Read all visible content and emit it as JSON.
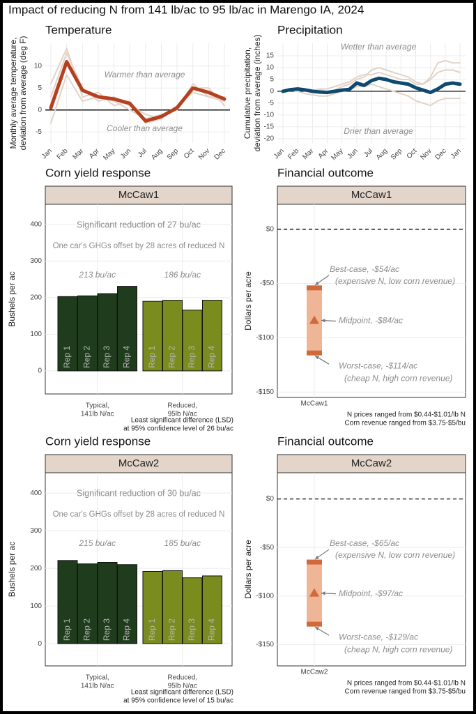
{
  "title": "Impact of reducing N from 141 lb/ac to 95 lb/ac in Marengo IA, 2024",
  "chart_data": [
    {
      "type": "line",
      "title": "Temperature",
      "ylabel": [
        "Monthly average temperature,",
        "deviation from average (deg F)"
      ],
      "categories": [
        "Jan",
        "Feb",
        "Mar",
        "Apr",
        "May",
        "Jun",
        "Jul",
        "Aug",
        "Sep",
        "Oct",
        "Nov",
        "Dec"
      ],
      "ylim": [
        -7.5,
        15.2
      ],
      "yticks": [
        -5,
        0,
        5,
        10
      ],
      "grid": true,
      "hline": 0,
      "annotations": [
        "Warmer than average",
        "Cooler than average"
      ],
      "series": [
        {
          "color": "#e2d3c7",
          "values": [
            3,
            13,
            5,
            2,
            3,
            1,
            -1,
            -2,
            1,
            4,
            3,
            2
          ]
        },
        {
          "color": "#e2d3c7",
          "values": [
            -3,
            8,
            2,
            3,
            2,
            0,
            -2,
            -1,
            0,
            6,
            3,
            3
          ]
        },
        {
          "color": "#e2d3c7",
          "values": [
            6,
            14,
            3,
            4,
            1,
            2,
            -3,
            -2,
            1,
            5,
            5,
            1
          ]
        },
        {
          "color": "#b5401f",
          "values": [
            0.5,
            11,
            4.5,
            3,
            2.5,
            1.5,
            -2.5,
            -1.5,
            0.5,
            5,
            4,
            2.5
          ]
        }
      ]
    },
    {
      "type": "line",
      "title": "Precipitation",
      "ylabel": [
        "Cumulative precipitation,",
        "deviation from average (inches)"
      ],
      "x": [
        0,
        0.5,
        1,
        1.5,
        2,
        2.5,
        3,
        3.5,
        4,
        4.5,
        5,
        5.5,
        6,
        6.5,
        7,
        7.5,
        8,
        8.5,
        9,
        9.5,
        10,
        10.5,
        11,
        11.5,
        12
      ],
      "xlim": [
        0,
        12
      ],
      "xticks": [
        {
          "value": 0,
          "label": "Jan"
        },
        {
          "value": 1,
          "label": "Feb"
        },
        {
          "value": 2,
          "label": "Mar"
        },
        {
          "value": 3,
          "label": "Apr"
        },
        {
          "value": 4,
          "label": "May"
        },
        {
          "value": 5,
          "label": "Jun"
        },
        {
          "value": 6,
          "label": "Jul"
        },
        {
          "value": 7,
          "label": "Aug"
        },
        {
          "value": 8,
          "label": "Sep"
        },
        {
          "value": 9,
          "label": "Oct"
        },
        {
          "value": 10,
          "label": "Nov"
        },
        {
          "value": 11,
          "label": "Dec"
        },
        {
          "value": 12,
          "label": "Jan"
        }
      ],
      "ylim": [
        -21.8,
        20.3
      ],
      "yticks": [
        -20,
        -15,
        -10,
        -5,
        0,
        5,
        10,
        15
      ],
      "grid": true,
      "hline": 0,
      "annotations": [
        "Wetter than average",
        "Drier than average"
      ],
      "series": [
        {
          "color": "#e2d3c7",
          "values": [
            0,
            1,
            1.5,
            1,
            0.5,
            0.5,
            0,
            0.5,
            2,
            3,
            5,
            6,
            9,
            10,
            9,
            8,
            7,
            6,
            4,
            3,
            6,
            12,
            13,
            12,
            12
          ]
        },
        {
          "color": "#e2d3c7",
          "values": [
            0,
            0.5,
            0,
            -1,
            -1.5,
            -2,
            -2,
            -1,
            0,
            0.5,
            2,
            2,
            3,
            2,
            1,
            0,
            -1,
            -2,
            -4,
            -5,
            -6,
            -4,
            -3,
            -3,
            -3
          ]
        },
        {
          "color": "#e2d3c7",
          "values": [
            0,
            0.5,
            1,
            1,
            0.5,
            1,
            1,
            2,
            3,
            4,
            6,
            7,
            7,
            8,
            7,
            6,
            5,
            5,
            3,
            3,
            5,
            8,
            9,
            9,
            8
          ]
        },
        {
          "color": "#0e4a70",
          "values": [
            0,
            0.7,
            1,
            0.6,
            0,
            -0.3,
            -0.5,
            0,
            0.5,
            0.8,
            3.5,
            2.5,
            4.5,
            5.5,
            5,
            4,
            3.5,
            3,
            1.5,
            0.5,
            -0.5,
            1,
            3,
            3.5,
            3
          ]
        }
      ]
    },
    {
      "type": "bar",
      "title": "Corn yield response",
      "facet": "McCaw1",
      "ylabel": [
        "Bushels per ac"
      ],
      "categories": [
        "Rep 1",
        "Rep 2",
        "Rep 3",
        "Rep 4"
      ],
      "series": [
        {
          "name": [
            "Typical,",
            "141lb N/ac"
          ],
          "color": "#1f3d1d",
          "values": [
            203,
            205,
            211,
            231
          ]
        },
        {
          "name": [
            "Reduced,",
            "95lb N/ac"
          ],
          "color": "#7b8c1f",
          "values": [
            190,
            193,
            166,
            193
          ]
        }
      ],
      "ylim": [
        -63,
        455
      ],
      "yticks": [
        0,
        100,
        200,
        300,
        400
      ],
      "grid": true,
      "annotations": [
        "Significant reduction of 27 bu/ac",
        "One car's GHGs offset by 28 acres of reduced N",
        "213 bu/ac",
        "186 bu/ac"
      ],
      "caption": [
        "Least significant difference (LSD)",
        "at 95% confidence level of 26 bu/ac"
      ]
    },
    {
      "type": "range",
      "title": "Financial outcome",
      "facet": "McCaw1",
      "ylabel": [
        "Dollars per acre"
      ],
      "categories": [
        "McCaw1"
      ],
      "low": [
        -114
      ],
      "mid": [
        -84
      ],
      "high": [
        -54
      ],
      "color": "#eeb597",
      "end_color": "#d2693a",
      "ylim": [
        -155,
        23
      ],
      "yticks": [
        {
          "value": -150,
          "label": "-$150"
        },
        {
          "value": -100,
          "label": "-$100"
        },
        {
          "value": -50,
          "label": "-$50"
        },
        {
          "value": 0,
          "label": "$0"
        }
      ],
      "grid": true,
      "hline": 0,
      "annotations": [
        "Best-case, -$54/ac",
        "(expensive N, low corn revenue)",
        "Midpoint, -$84/ac",
        "Worst-case, -$114/ac",
        "(cheap N,  high corn revenue)"
      ],
      "caption": [
        "N prices ranged from $0.44-$1.01/lb N",
        "Corn revenue ranged from $3.75-$5/bu"
      ]
    },
    {
      "type": "bar",
      "title": "Corn yield response",
      "facet": "McCaw2",
      "ylabel": [
        "Bushels per ac"
      ],
      "categories": [
        "Rep 1",
        "Rep 2",
        "Rep 3",
        "Rep 4"
      ],
      "series": [
        {
          "name": [
            "Typical,",
            "141lb N/ac"
          ],
          "color": "#1f3d1d",
          "values": [
            221,
            212,
            216,
            210
          ]
        },
        {
          "name": [
            "Reduced,",
            "95lb N/ac"
          ],
          "color": "#7b8c1f",
          "values": [
            192,
            194,
            175,
            180
          ]
        }
      ],
      "ylim": [
        -59,
        454
      ],
      "yticks": [
        0,
        100,
        200,
        300,
        400
      ],
      "grid": true,
      "annotations": [
        "Significant reduction of 30 bu/ac",
        "One car's GHGs offset by 28 acres of reduced N",
        "215 bu/ac",
        "185 bu/ac"
      ],
      "caption": [
        "Least significant difference (LSD)",
        "at 95% confidence level of 15 bu/ac"
      ]
    },
    {
      "type": "range",
      "title": "Financial outcome",
      "facet": "McCaw2",
      "ylabel": [
        "Dollars per acre"
      ],
      "categories": [
        "McCaw2"
      ],
      "low": [
        -129
      ],
      "mid": [
        -97
      ],
      "high": [
        -65
      ],
      "color": "#eeb597",
      "end_color": "#d2693a",
      "ylim": [
        -172,
        27
      ],
      "yticks": [
        {
          "value": -150,
          "label": "-$150"
        },
        {
          "value": -100,
          "label": "-$100"
        },
        {
          "value": -50,
          "label": "-$50"
        },
        {
          "value": 0,
          "label": "$0"
        }
      ],
      "grid": true,
      "hline": 0,
      "annotations": [
        "Best-case, -$65/ac",
        "(expensive N, low corn revenue)",
        "Midpoint, -$97/ac",
        "Worst-case, -$129/ac",
        "(cheap N,  high corn revenue)"
      ],
      "caption": [
        "N prices ranged from $0.44-$1.01/lb N",
        "Corn revenue ranged from $3.75-$5/bu"
      ]
    }
  ]
}
